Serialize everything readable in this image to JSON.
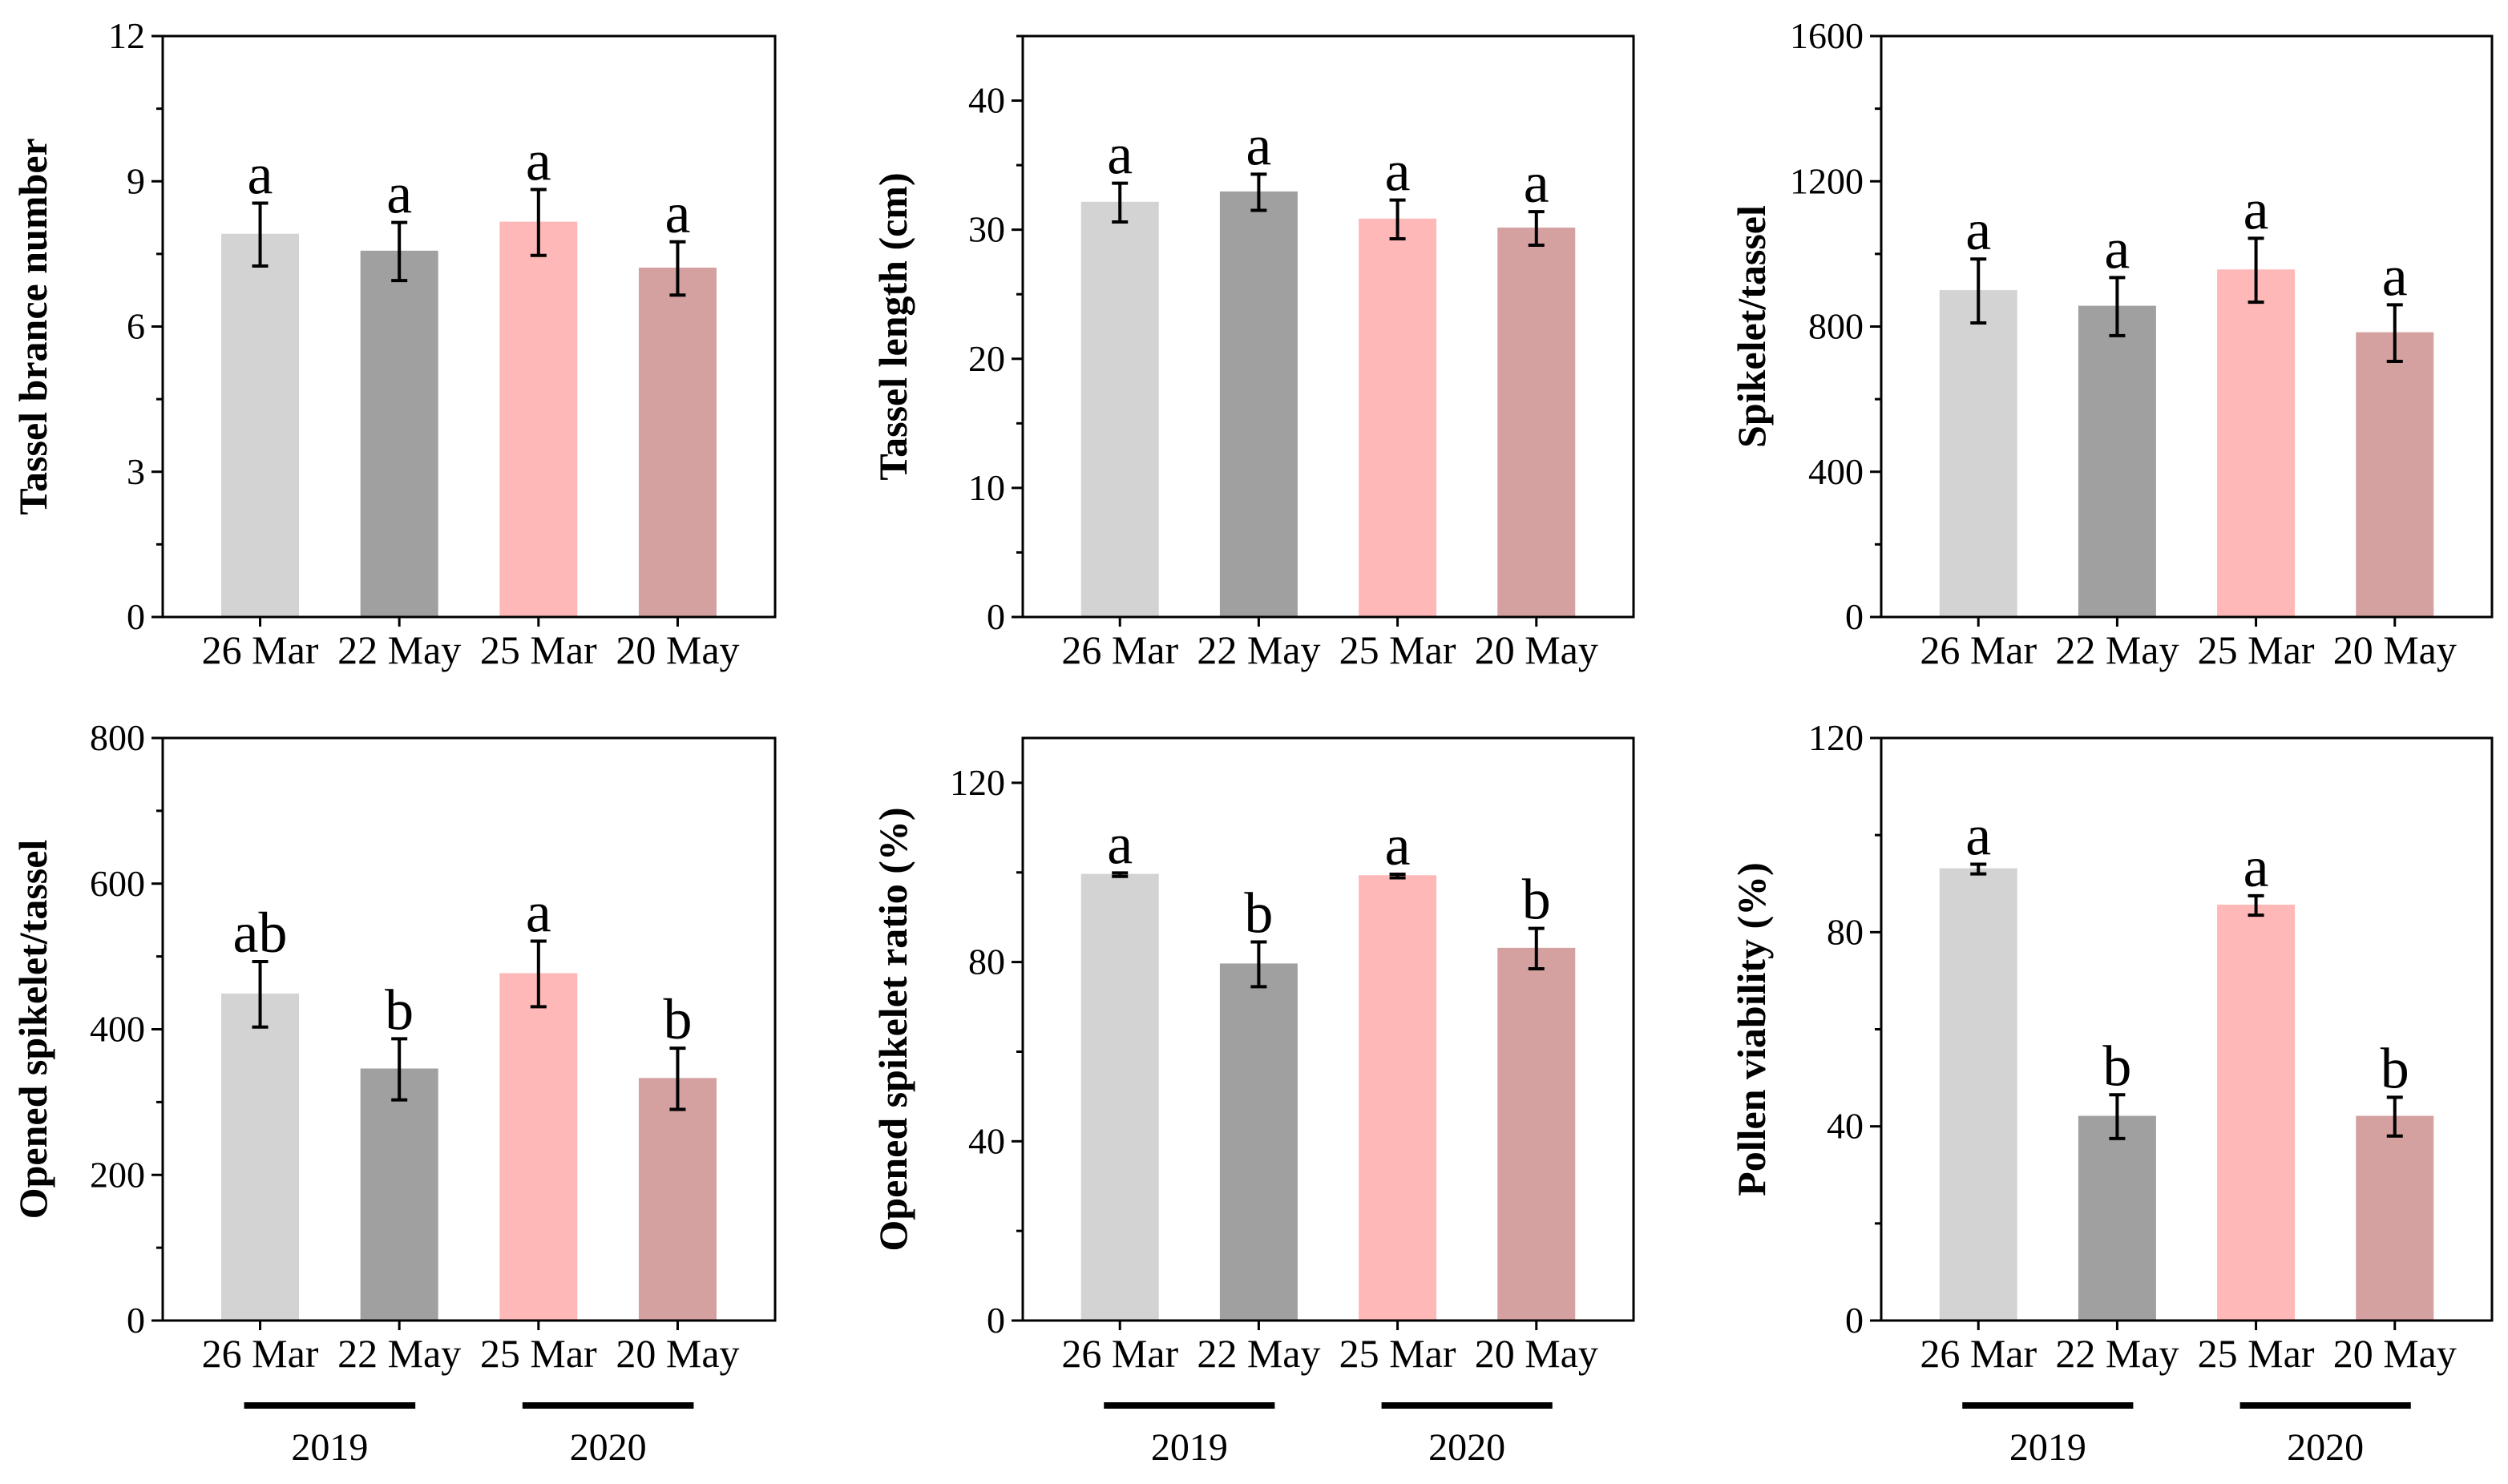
{
  "figure": {
    "colors": {
      "26 Mar": "#d3d3d3",
      "22 May": "#a0a0a0",
      "25 Mar": "#ffb8b8",
      "20 May": "#d4a0a0",
      "axis": "#000000",
      "background": "#ffffff"
    },
    "year_groups": [
      {
        "label": "2019",
        "categories": [
          "26 Mar",
          "22 May"
        ]
      },
      {
        "label": "2020",
        "categories": [
          "25 Mar",
          "20 May"
        ]
      }
    ]
  },
  "chart_data": [
    {
      "type": "bar",
      "ylabel": "Tassel brance number",
      "categories": [
        "26 Mar",
        "22 May",
        "25 Mar",
        "20 May"
      ],
      "values": [
        7.9,
        7.55,
        8.15,
        7.2
      ],
      "errors": [
        0.65,
        0.6,
        0.68,
        0.55
      ],
      "letters": [
        "a",
        "a",
        "a",
        "a"
      ],
      "ylim": [
        0,
        12
      ],
      "yticks": [
        0,
        3,
        6,
        9,
        12
      ]
    },
    {
      "type": "bar",
      "ylabel": "Tassel length (cm)",
      "categories": [
        "26 Mar",
        "22 May",
        "25 Mar",
        "20 May"
      ],
      "values": [
        32.1,
        32.9,
        30.8,
        30.1
      ],
      "errors": [
        1.5,
        1.4,
        1.5,
        1.3
      ],
      "letters": [
        "a",
        "a",
        "a",
        "a"
      ],
      "ylim": [
        0,
        45
      ],
      "yticks": [
        0,
        10,
        20,
        30,
        40
      ]
    },
    {
      "type": "bar",
      "ylabel": "Spikelet/tassel",
      "categories": [
        "26 Mar",
        "22 May",
        "25 Mar",
        "20 May"
      ],
      "values": [
        898,
        855,
        955,
        782
      ],
      "errors": [
        88,
        80,
        88,
        78
      ],
      "letters": [
        "a",
        "a",
        "a",
        "a"
      ],
      "ylim": [
        0,
        1600
      ],
      "yticks": [
        0,
        400,
        800,
        1200,
        1600
      ]
    },
    {
      "type": "bar",
      "ylabel": "Opened spikelet/tassel",
      "categories": [
        "26 Mar",
        "22 May",
        "25 Mar",
        "20 May"
      ],
      "values": [
        448,
        345,
        476,
        332
      ],
      "errors": [
        45,
        42,
        45,
        42
      ],
      "letters": [
        "ab",
        "b",
        "a",
        "b"
      ],
      "ylim": [
        0,
        800
      ],
      "yticks": [
        0,
        200,
        400,
        600,
        800
      ]
    },
    {
      "type": "bar",
      "ylabel": "Opened spikelet ratio (%)",
      "categories": [
        "26 Mar",
        "22 May",
        "25 Mar",
        "20 May"
      ],
      "values": [
        99.5,
        79.5,
        99.2,
        83
      ],
      "errors": [
        0.4,
        5,
        0.4,
        4.5
      ],
      "letters": [
        "a",
        "b",
        "a",
        "b"
      ],
      "ylim": [
        0,
        130
      ],
      "yticks": [
        0,
        40,
        80,
        120
      ]
    },
    {
      "type": "bar",
      "ylabel": "Pollen viability (%)",
      "categories": [
        "26 Mar",
        "22 May",
        "25 Mar",
        "20 May"
      ],
      "values": [
        93,
        42,
        85.5,
        42
      ],
      "errors": [
        1,
        4.5,
        2,
        4
      ],
      "letters": [
        "a",
        "b",
        "a",
        "b"
      ],
      "ylim": [
        0,
        120
      ],
      "yticks": [
        0,
        40,
        80,
        120
      ]
    }
  ]
}
